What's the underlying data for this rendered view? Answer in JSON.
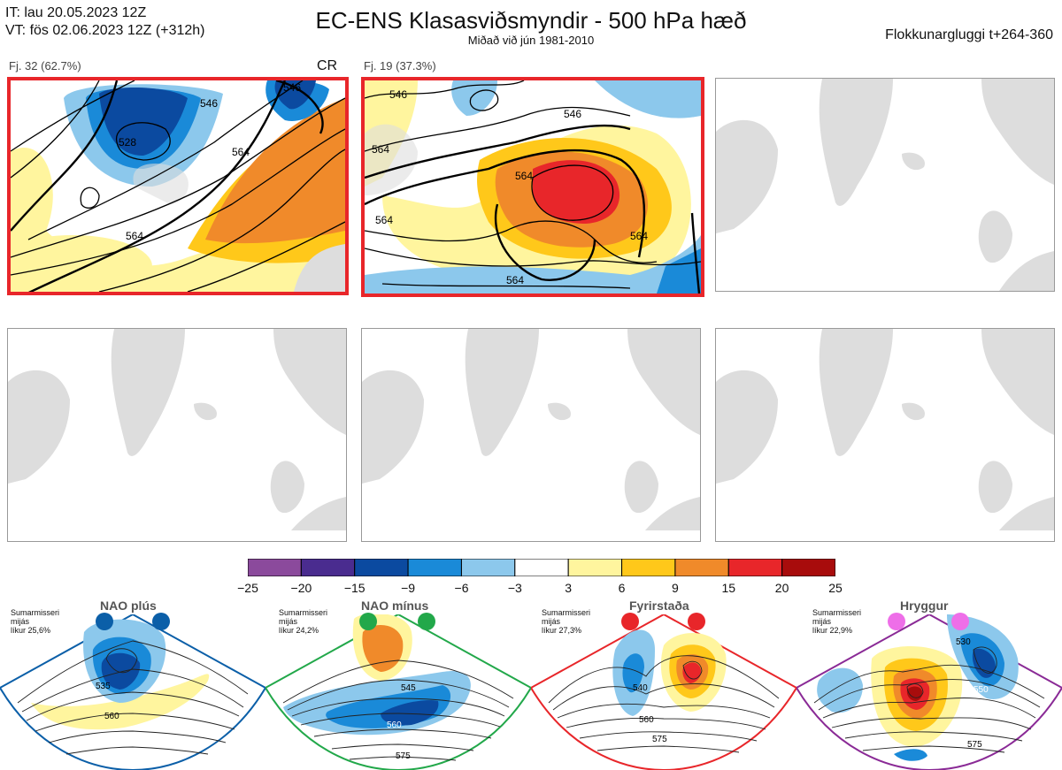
{
  "header": {
    "init_time": "IT: lau 20.05.2023 12Z",
    "valid_time": "VT: fös 02.06.2023 12Z  (+312h)",
    "title": "EC-ENS Klasasviðsmyndir - 500 hPa hæð",
    "subtitle": "Miðað við jún 1981-2010",
    "window": "Flokkunargluggi t+264-360"
  },
  "panels": [
    {
      "label": "Fj. 32 (62.7%)",
      "tag": "CR",
      "contours": [
        "528",
        "546",
        "564",
        "564",
        "546"
      ]
    },
    {
      "label": "Fj. 19 (37.3%)",
      "contours": [
        "546",
        "546",
        "564",
        "564",
        "564",
        "564",
        "564"
      ]
    }
  ],
  "colorbar": {
    "ticks": [
      "−25",
      "−20",
      "−15",
      "−9",
      "−6",
      "−3",
      "3",
      "6",
      "9",
      "15",
      "20",
      "25"
    ],
    "colors": [
      "#8b4a9c",
      "#4a2c8f",
      "#0b4aa0",
      "#1a8ad8",
      "#8cc8ec",
      "#ffffff",
      "#fff59e",
      "#ffc81a",
      "#f08a2a",
      "#e8262a",
      "#a80c0c"
    ]
  },
  "regimes": [
    {
      "name": "NAO plús",
      "season": "Sumarmisseri",
      "qualifier": "mijás",
      "prob": "líkur 25,6%",
      "color": "#0b5fa8",
      "labels": [
        "535",
        "560"
      ]
    },
    {
      "name": "NAO mínus",
      "season": "Sumarmisseri",
      "qualifier": "mijás",
      "prob": "líkur 24,2%",
      "color": "#22a84a",
      "labels": [
        "545",
        "560",
        "575"
      ]
    },
    {
      "name": "Fyrirstaða",
      "season": "Sumarmisseri",
      "qualifier": "mijás",
      "prob": "líkur 27,3%",
      "color": "#e8262a",
      "labels": [
        "540",
        "560",
        "575"
      ]
    },
    {
      "name": "Hryggur",
      "season": "Sumarmisseri",
      "qualifier": "mijás",
      "prob": "líkur 22,9%",
      "color": "#ee6ee8",
      "labels": [
        "530",
        "550",
        "575"
      ]
    }
  ]
}
